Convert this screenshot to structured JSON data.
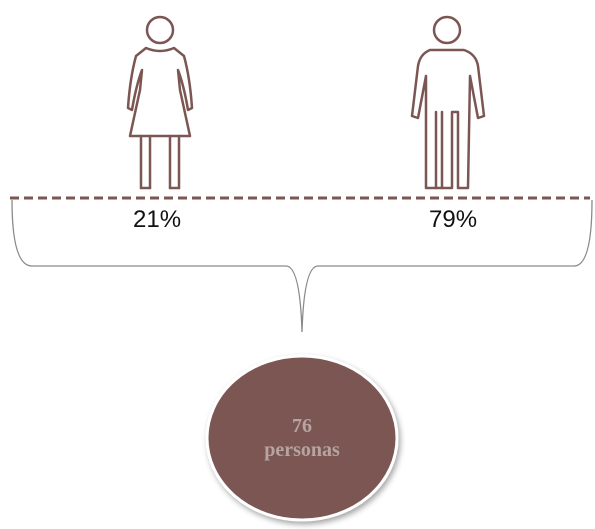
{
  "female": {
    "icon": "female-person-icon",
    "percent_label": "21%"
  },
  "male": {
    "icon": "male-person-icon",
    "percent_label": "79%"
  },
  "total": {
    "count": "76",
    "unit": "personas"
  },
  "colors": {
    "icon_stroke": "#7b5652",
    "dashed_line": "#7b5652",
    "bracket": "#8a8a8a",
    "circle_fill": "#7b5652",
    "circle_text": "#b6a4a1"
  }
}
